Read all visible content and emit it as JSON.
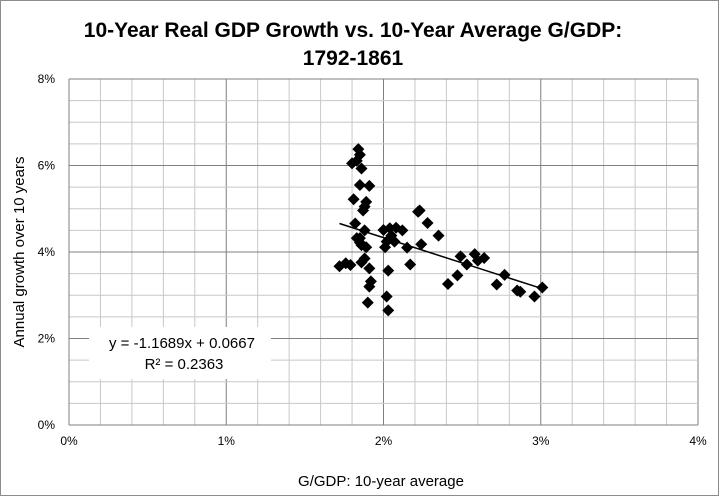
{
  "chart_data": {
    "type": "scatter",
    "title_lines": [
      "10-Year Real GDP Growth vs. 10-Year Average G/GDP:",
      "1792-1861"
    ],
    "xlabel": "G/GDP: 10-year average",
    "ylabel": "Annual growth over 10 years",
    "xlim": [
      0,
      0.04
    ],
    "ylim": [
      0,
      0.08
    ],
    "x_ticks": [
      0,
      0.01,
      0.02,
      0.03,
      0.04
    ],
    "x_tick_labels": [
      "0%",
      "1%",
      "2%",
      "3%",
      "4%"
    ],
    "y_ticks": [
      0,
      0.02,
      0.04,
      0.06,
      0.08
    ],
    "y_tick_labels": [
      "0%",
      "2%",
      "4%",
      "6%",
      "8%"
    ],
    "grid": true,
    "series": [
      {
        "name": "1792-1861",
        "marker": "diamond",
        "color": "#000000",
        "points": [
          [
            0.0172,
            0.0367
          ],
          [
            0.0176,
            0.0374
          ],
          [
            0.0179,
            0.037
          ],
          [
            0.018,
            0.0605
          ],
          [
            0.0181,
            0.0522
          ],
          [
            0.0182,
            0.0466
          ],
          [
            0.0183,
            0.0432
          ],
          [
            0.0183,
            0.0611
          ],
          [
            0.0184,
            0.0638
          ],
          [
            0.0185,
            0.0625
          ],
          [
            0.0185,
            0.0555
          ],
          [
            0.0185,
            0.0432
          ],
          [
            0.0185,
            0.0422
          ],
          [
            0.0186,
            0.0416
          ],
          [
            0.0186,
            0.0376
          ],
          [
            0.0186,
            0.0593
          ],
          [
            0.0187,
            0.0496
          ],
          [
            0.0188,
            0.0505
          ],
          [
            0.0188,
            0.045
          ],
          [
            0.0188,
            0.0385
          ],
          [
            0.0189,
            0.0516
          ],
          [
            0.0189,
            0.0411
          ],
          [
            0.019,
            0.0283
          ],
          [
            0.0191,
            0.0553
          ],
          [
            0.0191,
            0.0362
          ],
          [
            0.0191,
            0.032
          ],
          [
            0.0192,
            0.0332
          ],
          [
            0.02,
            0.0451
          ],
          [
            0.0201,
            0.0411
          ],
          [
            0.0202,
            0.0424
          ],
          [
            0.0202,
            0.0297
          ],
          [
            0.0203,
            0.0265
          ],
          [
            0.0203,
            0.0357
          ],
          [
            0.0204,
            0.0455
          ],
          [
            0.0205,
            0.0438
          ],
          [
            0.0207,
            0.0424
          ],
          [
            0.0208,
            0.0456
          ],
          [
            0.0212,
            0.045
          ],
          [
            0.0215,
            0.041
          ],
          [
            0.0217,
            0.0371
          ],
          [
            0.0222,
            0.0493
          ],
          [
            0.0223,
            0.0496
          ],
          [
            0.0224,
            0.0418
          ],
          [
            0.0228,
            0.0467
          ],
          [
            0.0235,
            0.0438
          ],
          [
            0.0241,
            0.0326
          ],
          [
            0.0247,
            0.0346
          ],
          [
            0.0249,
            0.039
          ],
          [
            0.0253,
            0.0371
          ],
          [
            0.0258,
            0.0395
          ],
          [
            0.026,
            0.038
          ],
          [
            0.0264,
            0.0386
          ],
          [
            0.0272,
            0.0325
          ],
          [
            0.0277,
            0.0347
          ],
          [
            0.0285,
            0.0311
          ],
          [
            0.0287,
            0.0308
          ],
          [
            0.0296,
            0.0297
          ],
          [
            0.0301,
            0.0318
          ]
        ]
      }
    ],
    "trendline": {
      "type": "linear",
      "slope": -1.1689,
      "intercept": 0.0667,
      "x_range": [
        0.0172,
        0.0301
      ],
      "equation_label": "y = -1.1689x + 0.0667",
      "r2_label": "R² = 0.2363"
    }
  }
}
